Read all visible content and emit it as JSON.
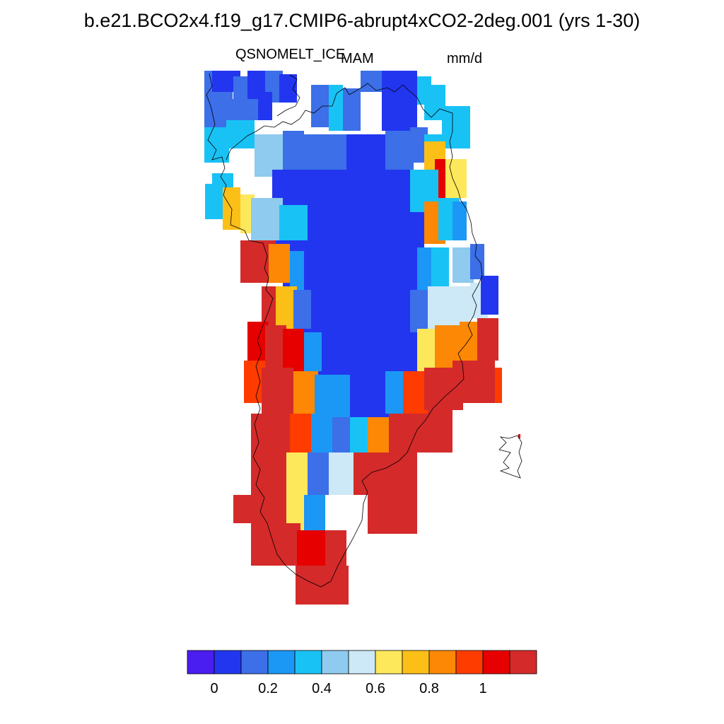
{
  "title": "b.e21.BCO2x4.f19_g17.CMIP6-abrupt4xCO2-2deg.001 (yrs 1-30)",
  "subtitle_left": "QSNOMELT_ICE",
  "subtitle_center": "MAM",
  "subtitle_right": "mm/d",
  "palette": [
    "#4a1df0",
    "#2236ef",
    "#3c6fe8",
    "#1b98f5",
    "#19c2f5",
    "#8ecbee",
    "#cde8f6",
    "#fde85c",
    "#fcbf18",
    "#fc8805",
    "#ff3c00",
    "#e60000",
    "#d42a2a"
  ],
  "colorbar": {
    "tick_labels": [
      "0",
      "0.2",
      "0.4",
      "0.6",
      "0.8",
      "1"
    ],
    "tick_values": [
      0,
      0.2,
      0.4,
      0.6,
      0.8,
      1.0
    ]
  }
}
